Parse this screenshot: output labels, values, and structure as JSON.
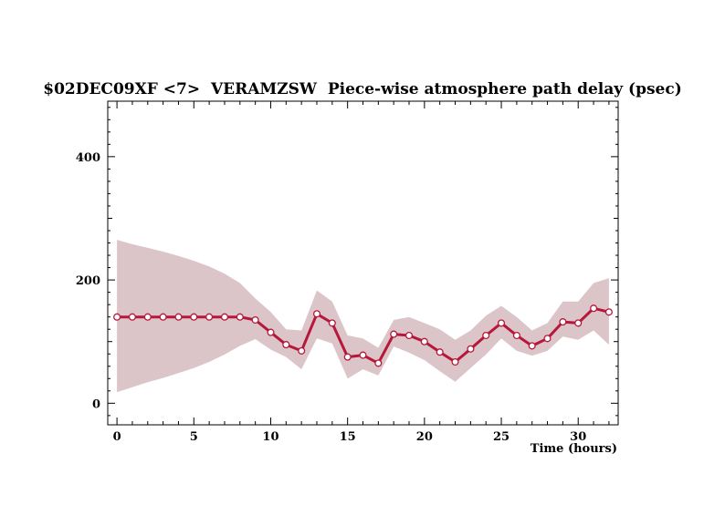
{
  "chart_data": {
    "type": "line",
    "title": "$02DEC09XF <7>  VERAMZSW  Piece-wise atmosphere path delay (psec)",
    "xlabel": "Time (hours)",
    "ylabel": "",
    "xlim": [
      -0.6,
      32.6
    ],
    "ylim": [
      -35,
      490
    ],
    "x_ticks": [
      "0",
      "5",
      "10",
      "15",
      "20",
      "25",
      "30"
    ],
    "y_ticks": [
      "0",
      "200",
      "400"
    ],
    "grid": false,
    "colors": {
      "line": "#b5183a",
      "band": "#dcc5c9",
      "marker_fill": "#ffffff",
      "axis": "#000000"
    },
    "series": [
      {
        "x": [
          0,
          1,
          2,
          3,
          4,
          5,
          6,
          7,
          8,
          9,
          10,
          11,
          12,
          13,
          14,
          15,
          16,
          17,
          18,
          19,
          20,
          21,
          22,
          23,
          24,
          25,
          26,
          27,
          28,
          29,
          30,
          31,
          32
        ],
        "values": [
          140,
          140,
          140,
          140,
          140,
          140,
          140,
          140,
          140,
          135,
          115,
          95,
          85,
          145,
          130,
          75,
          78,
          65,
          112,
          110,
          100,
          83,
          67,
          88,
          110,
          130,
          110,
          93,
          105,
          132,
          130,
          154,
          148
        ],
        "upper": [
          265,
          258,
          252,
          246,
          239,
          231,
          222,
          210,
          195,
          170,
          148,
          120,
          118,
          183,
          165,
          110,
          105,
          90,
          135,
          140,
          130,
          120,
          103,
          118,
          142,
          158,
          140,
          118,
          130,
          165,
          165,
          195,
          203
        ],
        "lower": [
          18,
          26,
          34,
          41,
          49,
          57,
          67,
          79,
          93,
          104,
          87,
          75,
          55,
          105,
          97,
          40,
          55,
          45,
          92,
          82,
          70,
          52,
          35,
          57,
          79,
          105,
          85,
          77,
          85,
          108,
          103,
          118,
          95
        ]
      }
    ]
  }
}
